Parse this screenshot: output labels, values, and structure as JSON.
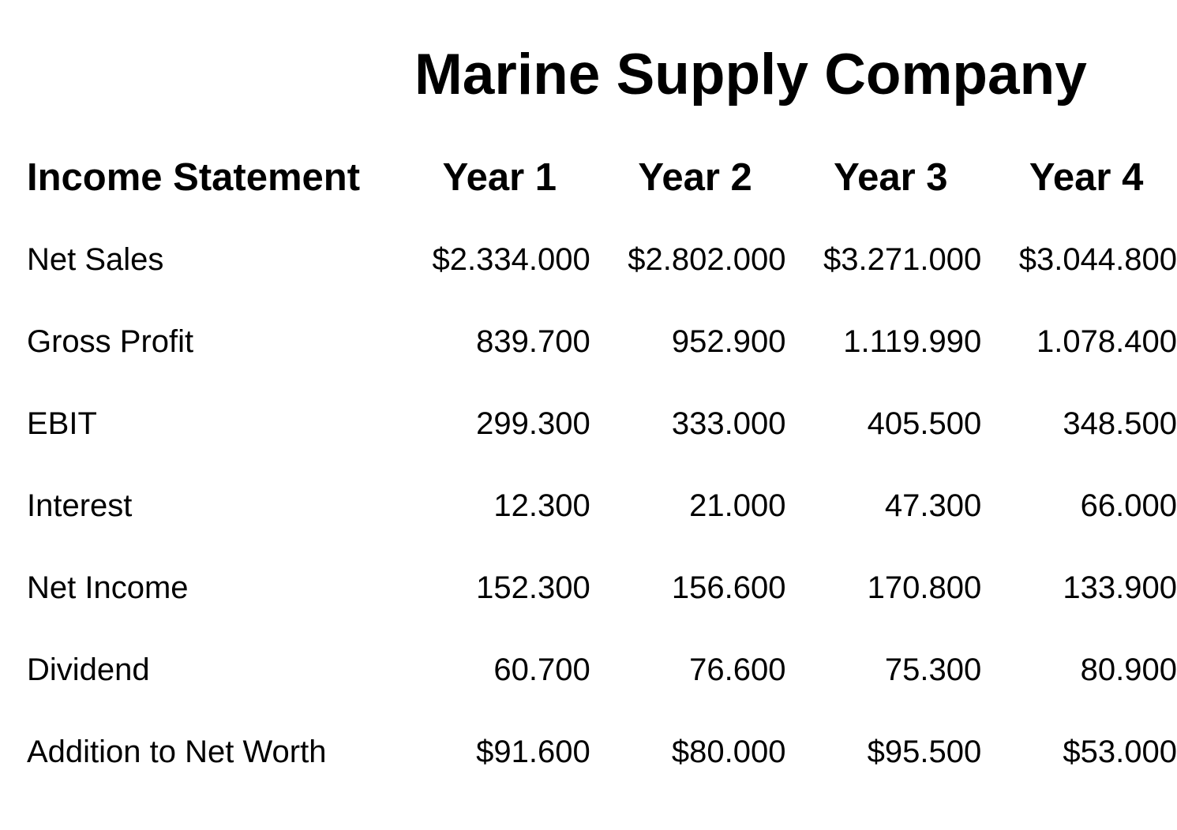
{
  "title": "Marine Supply Company",
  "header": {
    "label": "Income Statement",
    "years": [
      "Year 1",
      "Year 2",
      "Year 3",
      "Year 4"
    ]
  },
  "rows": [
    {
      "label": "Net Sales",
      "values": [
        "$2.334.000",
        "$2.802.000",
        "$3.271.000",
        "$3.044.800"
      ]
    },
    {
      "label": "Gross Profit",
      "values": [
        "839.700",
        "952.900",
        "1.119.990",
        "1.078.400"
      ]
    },
    {
      "label": "EBIT",
      "values": [
        "299.300",
        "333.000",
        "405.500",
        "348.500"
      ]
    },
    {
      "label": "Interest",
      "values": [
        "12.300",
        "21.000",
        "47.300",
        "66.000"
      ]
    },
    {
      "label": "Net Income",
      "values": [
        "152.300",
        "156.600",
        "170.800",
        "133.900"
      ]
    },
    {
      "label": "Dividend",
      "values": [
        "60.700",
        "76.600",
        "75.300",
        "80.900"
      ]
    },
    {
      "label": "Addition to Net Worth",
      "values": [
        "$91.600",
        "$80.000",
        "$95.500",
        "$53.000"
      ]
    }
  ]
}
